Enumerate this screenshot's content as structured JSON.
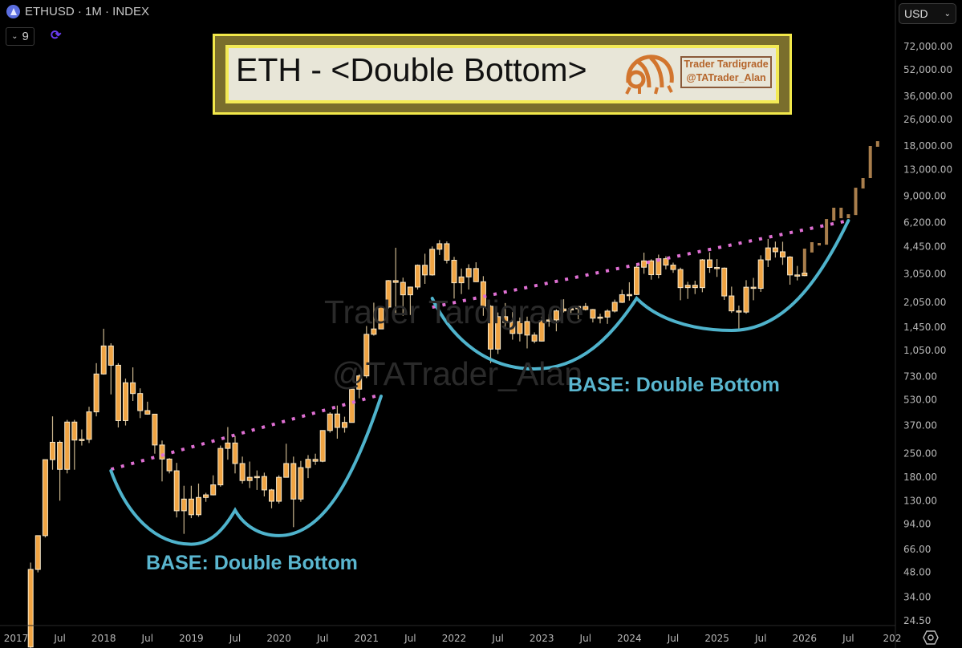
{
  "header": {
    "symbol_title": "ETHUSD · 1M · INDEX",
    "icon": "ethereum-icon",
    "indicator_count": "9",
    "refresh_icon": "refresh-icon"
  },
  "currency_select": {
    "value": "USD"
  },
  "banner": {
    "title": "ETH - <Double Bottom>",
    "brand_line1": "Trader Tardigrade",
    "brand_line2": "@TATrader_Alan",
    "colors": {
      "outer": "#f2e84a",
      "band": "#7a6e2c",
      "fill": "#e8e6d8",
      "brand": "#b5652b"
    }
  },
  "watermark": {
    "line1": "Trader Tardigrade",
    "line2": "@TATrader_Alan"
  },
  "labels": {
    "base_1": "BASE: Double Bottom",
    "base_2": "BASE: Double Bottom"
  },
  "chart_data": {
    "type": "candlestick",
    "interval": "1M",
    "y_scale": "log",
    "ylim": [
      24.5,
      72000
    ],
    "currency": "USD",
    "y_ticks": [
      "72,000.00",
      "52,000.00",
      "36,000.00",
      "26,000.00",
      "18,000.00",
      "13,000.00",
      "9,000.00",
      "6,200.00",
      "4,450.00",
      "3,050.00",
      "2,050.00",
      "1,450.00",
      "1,050.00",
      "730.00",
      "530.00",
      "370.00",
      "250.00",
      "180.00",
      "130.00",
      "94.00",
      "66.00",
      "48.00",
      "34.00",
      "24.50"
    ],
    "x_ticks": [
      "2017",
      "Jul",
      "2018",
      "Jul",
      "2019",
      "Jul",
      "2020",
      "Jul",
      "2021",
      "Jul",
      "2022",
      "Jul",
      "2023",
      "Jul",
      "2024",
      "Jul",
      "2025",
      "Jul",
      "2026",
      "Jul",
      "202"
    ],
    "colors": {
      "candle": "#f0a443",
      "candle_border": "#f6e7c9",
      "wick": "#c9b48c",
      "projection": "#a97e4c",
      "trendline": "#e070d4",
      "base_curve": "#4fb3cc"
    },
    "candles_ohlc": [
      [
        "2017-03",
        17,
        55,
        15,
        50
      ],
      [
        "2017-04",
        50,
        80,
        48,
        80
      ],
      [
        "2017-05",
        80,
        230,
        78,
        230
      ],
      [
        "2017-06",
        230,
        420,
        200,
        293
      ],
      [
        "2017-07",
        293,
        300,
        130,
        201
      ],
      [
        "2017-08",
        201,
        400,
        190,
        388
      ],
      [
        "2017-09",
        388,
        400,
        200,
        302
      ],
      [
        "2017-10",
        302,
        350,
        280,
        305
      ],
      [
        "2017-11",
        305,
        480,
        290,
        447
      ],
      [
        "2017-12",
        447,
        880,
        420,
        757
      ],
      [
        "2018-01",
        757,
        1420,
        750,
        1118
      ],
      [
        "2018-02",
        1118,
        1160,
        570,
        855
      ],
      [
        "2018-03",
        855,
        880,
        360,
        396
      ],
      [
        "2018-04",
        396,
        710,
        370,
        670
      ],
      [
        "2018-05",
        670,
        830,
        520,
        577
      ],
      [
        "2018-06",
        577,
        620,
        410,
        455
      ],
      [
        "2018-07",
        455,
        515,
        430,
        433
      ],
      [
        "2018-08",
        433,
        433,
        250,
        282
      ],
      [
        "2018-09",
        282,
        300,
        170,
        232
      ],
      [
        "2018-10",
        232,
        235,
        190,
        197
      ],
      [
        "2018-11",
        197,
        220,
        103,
        113
      ],
      [
        "2018-12",
        113,
        160,
        82,
        133
      ],
      [
        "2019-01",
        133,
        160,
        102,
        107
      ],
      [
        "2019-02",
        107,
        165,
        104,
        136
      ],
      [
        "2019-03",
        136,
        145,
        128,
        141
      ],
      [
        "2019-04",
        141,
        185,
        140,
        162
      ],
      [
        "2019-05",
        162,
        280,
        158,
        269
      ],
      [
        "2019-06",
        269,
        362,
        230,
        290
      ],
      [
        "2019-07",
        290,
        320,
        190,
        218
      ],
      [
        "2019-08",
        218,
        240,
        165,
        172
      ],
      [
        "2019-09",
        172,
        224,
        155,
        180
      ],
      [
        "2019-10",
        180,
        198,
        151,
        182
      ],
      [
        "2019-11",
        182,
        192,
        138,
        151
      ],
      [
        "2019-12",
        151,
        153,
        117,
        129
      ],
      [
        "2020-01",
        129,
        185,
        125,
        180
      ],
      [
        "2020-02",
        180,
        287,
        180,
        218
      ],
      [
        "2020-03",
        218,
        240,
        90,
        133
      ],
      [
        "2020-04",
        133,
        226,
        128,
        206
      ],
      [
        "2020-05",
        206,
        245,
        178,
        231
      ],
      [
        "2020-06",
        231,
        250,
        214,
        225
      ],
      [
        "2020-07",
        225,
        345,
        222,
        345
      ],
      [
        "2020-08",
        345,
        445,
        335,
        434
      ],
      [
        "2020-09",
        434,
        488,
        308,
        360
      ],
      [
        "2020-10",
        360,
        418,
        335,
        386
      ],
      [
        "2020-11",
        386,
        620,
        385,
        613
      ],
      [
        "2020-12",
        613,
        755,
        540,
        737
      ],
      [
        "2021-01",
        737,
        1475,
        715,
        1314
      ],
      [
        "2021-02",
        1314,
        2040,
        1290,
        1416
      ],
      [
        "2021-03",
        1416,
        1942,
        1470,
        1919
      ],
      [
        "2021-04",
        1919,
        2798,
        1880,
        2772
      ],
      [
        "2021-05",
        2772,
        4380,
        1720,
        2706
      ],
      [
        "2021-06",
        2706,
        2890,
        1700,
        2275
      ],
      [
        "2021-07",
        2275,
        2550,
        1720,
        2535
      ],
      [
        "2021-08",
        2535,
        3470,
        2450,
        3433
      ],
      [
        "2021-09",
        3433,
        4030,
        2650,
        3000
      ],
      [
        "2021-10",
        3000,
        4460,
        2970,
        4288
      ],
      [
        "2021-11",
        4288,
        4870,
        3960,
        4630
      ],
      [
        "2021-12",
        4630,
        4780,
        3520,
        3680
      ],
      [
        "2022-01",
        3680,
        3860,
        2160,
        2690
      ],
      [
        "2022-02",
        2690,
        3280,
        2300,
        2920
      ],
      [
        "2022-03",
        2920,
        3480,
        2450,
        3280
      ],
      [
        "2022-04",
        3280,
        3580,
        2720,
        2730
      ],
      [
        "2022-05",
        2730,
        2950,
        1700,
        1940
      ],
      [
        "2022-06",
        1940,
        1970,
        880,
        1070
      ],
      [
        "2022-07",
        1070,
        1780,
        1000,
        1680
      ],
      [
        "2022-08",
        1680,
        2030,
        1420,
        1550
      ],
      [
        "2022-09",
        1550,
        1790,
        1220,
        1330
      ],
      [
        "2022-10",
        1330,
        1660,
        1190,
        1570
      ],
      [
        "2022-11",
        1570,
        1680,
        1080,
        1300
      ],
      [
        "2022-12",
        1300,
        1350,
        1160,
        1196
      ],
      [
        "2023-01",
        1196,
        1680,
        1190,
        1585
      ],
      [
        "2023-02",
        1585,
        1740,
        1460,
        1605
      ],
      [
        "2023-03",
        1605,
        1860,
        1370,
        1820
      ],
      [
        "2023-04",
        1820,
        2140,
        1780,
        1870
      ],
      [
        "2023-05",
        1870,
        1930,
        1760,
        1875
      ],
      [
        "2023-06",
        1875,
        1930,
        1620,
        1935
      ],
      [
        "2023-07",
        1935,
        2030,
        1830,
        1855
      ],
      [
        "2023-08",
        1855,
        1870,
        1550,
        1645
      ],
      [
        "2023-09",
        1645,
        1750,
        1530,
        1670
      ],
      [
        "2023-10",
        1670,
        1860,
        1520,
        1815
      ],
      [
        "2023-11",
        1815,
        2130,
        1780,
        2050
      ],
      [
        "2023-12",
        2050,
        2440,
        2030,
        2280
      ],
      [
        "2024-01",
        2280,
        2710,
        2100,
        2285
      ],
      [
        "2024-02",
        2285,
        3520,
        2270,
        3340
      ],
      [
        "2024-03",
        3340,
        4090,
        3050,
        3650
      ],
      [
        "2024-04",
        3650,
        3730,
        2810,
        3010
      ],
      [
        "2024-05",
        3010,
        3980,
        2860,
        3760
      ],
      [
        "2024-06",
        3760,
        3890,
        3240,
        3440
      ],
      [
        "2024-07",
        3440,
        3560,
        3090,
        3235
      ],
      [
        "2024-08",
        3235,
        3320,
        2110,
        2515
      ],
      [
        "2024-09",
        2515,
        2730,
        2150,
        2600
      ],
      [
        "2024-10",
        2600,
        2770,
        2300,
        2515
      ],
      [
        "2024-11",
        2515,
        3740,
        2360,
        3700
      ],
      [
        "2024-12",
        3700,
        4110,
        3090,
        3330
      ],
      [
        "2025-01",
        3330,
        3740,
        2920,
        3300
      ],
      [
        "2025-02",
        3300,
        3330,
        2120,
        2240
      ],
      [
        "2025-03",
        2240,
        2550,
        1770,
        1820
      ],
      [
        "2025-04",
        1820,
        1960,
        1380,
        1790
      ],
      [
        "2025-05",
        1790,
        2790,
        1750,
        2530
      ],
      [
        "2025-06",
        2530,
        2880,
        2110,
        2490
      ],
      [
        "2025-07",
        2490,
        3940,
        2370,
        3700
      ],
      [
        "2025-08",
        3700,
        4950,
        3350,
        4370
      ],
      [
        "2025-09",
        4370,
        4770,
        3820,
        4140
      ],
      [
        "2025-10",
        4140,
        4760,
        3450,
        3850
      ],
      [
        "2025-11",
        3850,
        3900,
        2620,
        3000
      ],
      [
        "2025-12",
        3000,
        3400,
        2780,
        2970
      ],
      [
        "2026-01",
        2970,
        3150,
        2950,
        3080
      ]
    ],
    "projection_bars": [
      [
        "2026-01",
        3100,
        4325
      ],
      [
        "2026-02",
        4100,
        4730
      ],
      [
        "2026-03",
        4520,
        4677
      ],
      [
        "2026-04",
        4570,
        6530
      ],
      [
        "2026-05",
        6380,
        7640
      ],
      [
        "2026-06",
        6600,
        7640
      ],
      [
        "2026-07",
        6600,
        6980
      ],
      [
        "2026-08",
        6900,
        10090
      ],
      [
        "2026-09",
        9980,
        11540
      ],
      [
        "2026-10",
        11540,
        18030
      ],
      [
        "2026-11",
        17830,
        19270
      ]
    ],
    "trendlines": [
      {
        "style": "dotted",
        "points": [
          [
            "2018-02",
            201
          ],
          [
            "2021-03",
            569
          ]
        ]
      },
      {
        "style": "dotted",
        "points": [
          [
            "2021-10",
            1916
          ],
          [
            "2026-07",
            6390
          ]
        ]
      }
    ],
    "base_curves": [
      {
        "label": "BASE: Double Bottom",
        "points": [
          [
            "2018-02",
            197
          ],
          [
            "2019-01",
            71
          ],
          [
            "2019-07",
            114
          ],
          [
            "2020-01",
            80
          ],
          [
            "2021-03",
            556
          ]
        ]
      },
      {
        "label": "BASE: Double Bottom",
        "points": [
          [
            "2021-10",
            2167
          ],
          [
            "2022-12",
            812
          ],
          [
            "2024-02",
            2167
          ],
          [
            "2025-03",
            1387
          ],
          [
            "2026-07",
            6390
          ]
        ]
      }
    ]
  }
}
